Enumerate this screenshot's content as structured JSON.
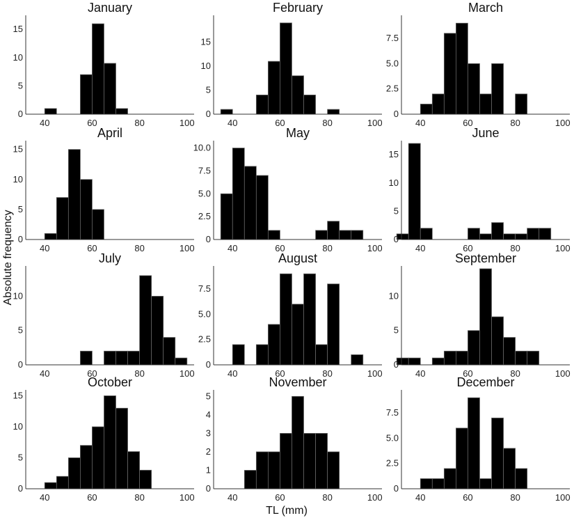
{
  "figure": {
    "ylabel": "Absolute frequency",
    "xlabel": "TL (mm)"
  },
  "chart_data": [
    {
      "type": "bar",
      "title": "January",
      "xlim": [
        32,
        103
      ],
      "xticks": [
        40,
        60,
        80,
        100
      ],
      "ylim": [
        0,
        17
      ],
      "yticks": [
        0,
        5,
        10,
        15
      ],
      "binwidth": 5,
      "bins": [
        {
          "x": 42.5,
          "count": 1
        },
        {
          "x": 57.5,
          "count": 7
        },
        {
          "x": 62.5,
          "count": 16
        },
        {
          "x": 67.5,
          "count": 9
        },
        {
          "x": 72.5,
          "count": 1
        }
      ]
    },
    {
      "type": "bar",
      "title": "February",
      "xlim": [
        32,
        103
      ],
      "xticks": [
        40,
        60,
        80,
        100
      ],
      "ylim": [
        0,
        20
      ],
      "yticks": [
        0,
        5,
        10,
        15
      ],
      "binwidth": 5,
      "bins": [
        {
          "x": 37.5,
          "count": 1
        },
        {
          "x": 52.5,
          "count": 4
        },
        {
          "x": 57.5,
          "count": 11
        },
        {
          "x": 62.5,
          "count": 19
        },
        {
          "x": 67.5,
          "count": 8
        },
        {
          "x": 72.5,
          "count": 4
        },
        {
          "x": 82.5,
          "count": 1
        }
      ]
    },
    {
      "type": "bar",
      "title": "March",
      "xlim": [
        32,
        103
      ],
      "xticks": [
        40,
        60,
        80,
        100
      ],
      "ylim": [
        0,
        9.5
      ],
      "yticks": [
        0,
        2.5,
        5.0,
        7.5
      ],
      "yticklabels": [
        "0",
        "2.5",
        "5.0",
        "7.5"
      ],
      "binwidth": 5,
      "bins": [
        {
          "x": 42.5,
          "count": 1
        },
        {
          "x": 47.5,
          "count": 2
        },
        {
          "x": 52.5,
          "count": 8
        },
        {
          "x": 57.5,
          "count": 9
        },
        {
          "x": 62.5,
          "count": 5
        },
        {
          "x": 67.5,
          "count": 2
        },
        {
          "x": 72.5,
          "count": 5
        },
        {
          "x": 82.5,
          "count": 2
        }
      ]
    },
    {
      "type": "bar",
      "title": "April",
      "xlim": [
        32,
        103
      ],
      "xticks": [
        40,
        60,
        80,
        100
      ],
      "ylim": [
        0,
        16
      ],
      "yticks": [
        0,
        5,
        10,
        15
      ],
      "binwidth": 5,
      "bins": [
        {
          "x": 42.5,
          "count": 1
        },
        {
          "x": 47.5,
          "count": 7
        },
        {
          "x": 52.5,
          "count": 15
        },
        {
          "x": 57.5,
          "count": 10
        },
        {
          "x": 62.5,
          "count": 5
        }
      ]
    },
    {
      "type": "bar",
      "title": "May",
      "xlim": [
        32,
        103
      ],
      "xticks": [
        40,
        60,
        80,
        100
      ],
      "ylim": [
        0,
        10.5
      ],
      "yticks": [
        0,
        2.5,
        5.0,
        7.5,
        10.0
      ],
      "yticklabels": [
        "0",
        "2.5",
        "5.0",
        "7.5",
        "10.0"
      ],
      "binwidth": 5,
      "bins": [
        {
          "x": 37.5,
          "count": 5
        },
        {
          "x": 42.5,
          "count": 10
        },
        {
          "x": 47.5,
          "count": 8
        },
        {
          "x": 52.5,
          "count": 7
        },
        {
          "x": 57.5,
          "count": 1
        },
        {
          "x": 77.5,
          "count": 1
        },
        {
          "x": 82.5,
          "count": 2
        },
        {
          "x": 87.5,
          "count": 1
        },
        {
          "x": 92.5,
          "count": 1
        }
      ]
    },
    {
      "type": "bar",
      "title": "June",
      "xlim": [
        32,
        103
      ],
      "xticks": [
        40,
        60,
        80,
        100
      ],
      "ylim": [
        0,
        17
      ],
      "yticks": [
        0,
        5,
        10,
        15
      ],
      "binwidth": 5,
      "bins": [
        {
          "x": 32.5,
          "count": 1
        },
        {
          "x": 37.5,
          "count": 17
        },
        {
          "x": 42.5,
          "count": 2
        },
        {
          "x": 62.5,
          "count": 2
        },
        {
          "x": 67.5,
          "count": 1
        },
        {
          "x": 72.5,
          "count": 3
        },
        {
          "x": 77.5,
          "count": 1
        },
        {
          "x": 82.5,
          "count": 1
        },
        {
          "x": 87.5,
          "count": 2
        },
        {
          "x": 92.5,
          "count": 2
        }
      ]
    },
    {
      "type": "bar",
      "title": "July",
      "xlim": [
        32,
        103
      ],
      "xticks": [
        40,
        60,
        80,
        100
      ],
      "ylim": [
        0,
        14
      ],
      "yticks": [
        0,
        5,
        10
      ],
      "binwidth": 5,
      "bins": [
        {
          "x": 57.5,
          "count": 2
        },
        {
          "x": 67.5,
          "count": 2
        },
        {
          "x": 72.5,
          "count": 2
        },
        {
          "x": 77.5,
          "count": 2
        },
        {
          "x": 82.5,
          "count": 13
        },
        {
          "x": 87.5,
          "count": 10
        },
        {
          "x": 92.5,
          "count": 4
        },
        {
          "x": 97.5,
          "count": 1
        }
      ]
    },
    {
      "type": "bar",
      "title": "August",
      "xlim": [
        32,
        103
      ],
      "xticks": [
        40,
        60,
        80,
        100
      ],
      "ylim": [
        0,
        9.5
      ],
      "yticks": [
        0,
        2.5,
        5.0,
        7.5
      ],
      "yticklabels": [
        "0",
        "2.5",
        "5.0",
        "7.5"
      ],
      "binwidth": 5,
      "bins": [
        {
          "x": 42.5,
          "count": 2
        },
        {
          "x": 52.5,
          "count": 2
        },
        {
          "x": 57.5,
          "count": 4
        },
        {
          "x": 62.5,
          "count": 9
        },
        {
          "x": 67.5,
          "count": 6
        },
        {
          "x": 72.5,
          "count": 9
        },
        {
          "x": 77.5,
          "count": 2
        },
        {
          "x": 82.5,
          "count": 8
        },
        {
          "x": 92.5,
          "count": 1
        }
      ]
    },
    {
      "type": "bar",
      "title": "September",
      "xlim": [
        32,
        103
      ],
      "xticks": [
        40,
        60,
        80,
        100
      ],
      "ylim": [
        0,
        14
      ],
      "yticks": [
        0,
        5,
        10
      ],
      "binwidth": 5,
      "bins": [
        {
          "x": 32.5,
          "count": 1
        },
        {
          "x": 37.5,
          "count": 1
        },
        {
          "x": 47.5,
          "count": 1
        },
        {
          "x": 52.5,
          "count": 2
        },
        {
          "x": 57.5,
          "count": 2
        },
        {
          "x": 62.5,
          "count": 5
        },
        {
          "x": 67.5,
          "count": 14
        },
        {
          "x": 72.5,
          "count": 7
        },
        {
          "x": 77.5,
          "count": 4
        },
        {
          "x": 82.5,
          "count": 2
        },
        {
          "x": 87.5,
          "count": 2
        }
      ]
    },
    {
      "type": "bar",
      "title": "October",
      "xlim": [
        32,
        103
      ],
      "xticks": [
        40,
        60,
        80,
        100
      ],
      "ylim": [
        0,
        15.5
      ],
      "yticks": [
        0,
        5,
        10,
        15
      ],
      "binwidth": 5,
      "bins": [
        {
          "x": 42.5,
          "count": 1
        },
        {
          "x": 47.5,
          "count": 2
        },
        {
          "x": 52.5,
          "count": 5
        },
        {
          "x": 57.5,
          "count": 7
        },
        {
          "x": 62.5,
          "count": 10
        },
        {
          "x": 67.5,
          "count": 15
        },
        {
          "x": 72.5,
          "count": 13
        },
        {
          "x": 77.5,
          "count": 6
        },
        {
          "x": 82.5,
          "count": 3
        }
      ]
    },
    {
      "type": "bar",
      "title": "November",
      "xlim": [
        32,
        103
      ],
      "xticks": [
        40,
        60,
        80,
        100
      ],
      "ylim": [
        0,
        5.2
      ],
      "yticks": [
        0,
        1,
        2,
        3,
        4,
        5
      ],
      "binwidth": 5,
      "bins": [
        {
          "x": 47.5,
          "count": 1
        },
        {
          "x": 52.5,
          "count": 2
        },
        {
          "x": 57.5,
          "count": 2
        },
        {
          "x": 62.5,
          "count": 3
        },
        {
          "x": 67.5,
          "count": 5
        },
        {
          "x": 72.5,
          "count": 3
        },
        {
          "x": 77.5,
          "count": 3
        },
        {
          "x": 82.5,
          "count": 2
        }
      ]
    },
    {
      "type": "bar",
      "title": "December",
      "xlim": [
        32,
        103
      ],
      "xticks": [
        40,
        60,
        80,
        100
      ],
      "ylim": [
        0,
        9.5
      ],
      "yticks": [
        0,
        2.5,
        5.0,
        7.5
      ],
      "yticklabels": [
        "0",
        "2.5",
        "5.0",
        "7.5"
      ],
      "binwidth": 5,
      "bins": [
        {
          "x": 42.5,
          "count": 1
        },
        {
          "x": 47.5,
          "count": 1
        },
        {
          "x": 52.5,
          "count": 2
        },
        {
          "x": 57.5,
          "count": 6
        },
        {
          "x": 62.5,
          "count": 9
        },
        {
          "x": 67.5,
          "count": 1
        },
        {
          "x": 72.5,
          "count": 7
        },
        {
          "x": 77.5,
          "count": 4
        },
        {
          "x": 82.5,
          "count": 2
        }
      ]
    }
  ]
}
